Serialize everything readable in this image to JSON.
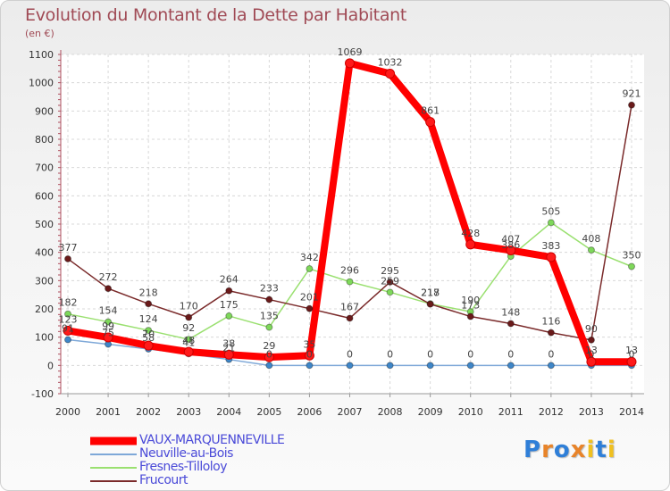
{
  "chart_data": {
    "type": "line",
    "title": "Evolution du Montant de la Dette par Habitant",
    "ylabel": "(en €)",
    "xlabel": "",
    "ylim": [
      -100,
      1100
    ],
    "yticks": [
      -100,
      0,
      100,
      200,
      300,
      400,
      500,
      600,
      700,
      800,
      900,
      1000,
      1100
    ],
    "x": [
      "2000",
      "2001",
      "2002",
      "2003",
      "2004",
      "2005",
      "2006",
      "2007",
      "2008",
      "2009",
      "2010",
      "2011",
      "2012",
      "2013",
      "2014"
    ],
    "series": [
      {
        "name": "VAUX-MARQUENNEVILLE",
        "color": "#ff0000",
        "width": 8,
        "marker": "#ff1a1a",
        "values": [
          123,
          99,
          70,
          48,
          38,
          29,
          35,
          1069,
          1032,
          861,
          428,
          407,
          383,
          13,
          13
        ],
        "labels": [
          "123",
          "99",
          "70",
          "48",
          "38",
          "29",
          "35",
          "1069",
          "1032",
          "861",
          "428",
          "407",
          "383",
          "13",
          "13"
        ]
      },
      {
        "name": "Neuville-au-Bois",
        "color": "#7ea8d8",
        "width": 1.5,
        "marker": "#3e86c8",
        "values": [
          91,
          75,
          58,
          41,
          21,
          0,
          0,
          0,
          0,
          0,
          0,
          0,
          0,
          0,
          0
        ],
        "labels": [
          "91",
          "75",
          "58",
          "41",
          "21",
          "0",
          "0",
          "0",
          "0",
          "0",
          "0",
          "0",
          "0",
          "0",
          "0"
        ]
      },
      {
        "name": "Fresnes-Tilloloy",
        "color": "#9ae070",
        "width": 1.5,
        "marker": "#7ed85a",
        "values": [
          182,
          154,
          124,
          92,
          175,
          135,
          342,
          296,
          259,
          218,
          190,
          386,
          505,
          408,
          350
        ],
        "labels": [
          "182",
          "154",
          "124",
          "92",
          "175",
          "135",
          "342",
          "296",
          "259",
          "218",
          "190",
          "386",
          "505",
          "408",
          "350"
        ]
      },
      {
        "name": "Frucourt",
        "color": "#7a2a2a",
        "width": 1.5,
        "marker": "#6a1a1a",
        "values": [
          377,
          272,
          218,
          170,
          264,
          233,
          201,
          167,
          295,
          217,
          173,
          148,
          116,
          90,
          921
        ],
        "labels": [
          "377",
          "272",
          "218",
          "170",
          "264",
          "233",
          "201",
          "167",
          "295",
          "217",
          "173",
          "148",
          "116",
          "90",
          "921"
        ]
      }
    ]
  },
  "legend": {
    "items": [
      "VAUX-MARQUENNEVILLE",
      "Neuville-au-Bois",
      "Fresnes-Tilloloy",
      "Frucourt"
    ]
  },
  "logo": {
    "text": "Proxiti",
    "letters": [
      "P",
      "r",
      "o",
      "x",
      "i",
      "t",
      "i"
    ],
    "colors": [
      "#2f7fd8",
      "#e8842a",
      "#2f7fd8",
      "#e8842a",
      "#f0c020",
      "#2f7fd8",
      "#f0c020"
    ]
  }
}
